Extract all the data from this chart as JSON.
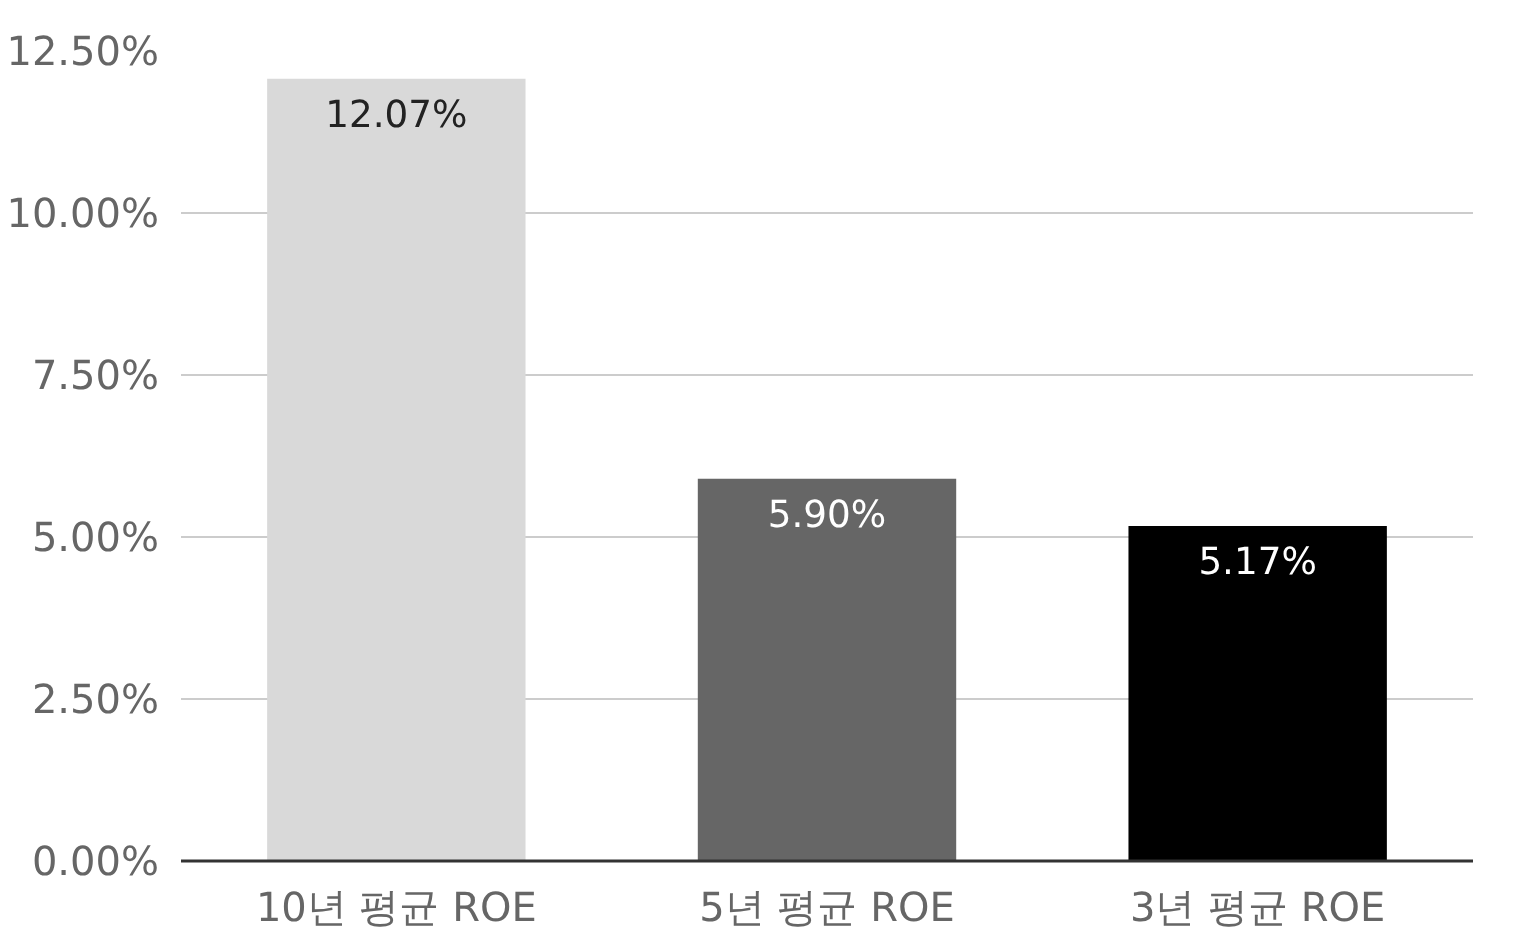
{
  "chart_data": {
    "type": "bar",
    "categories": [
      "10년 평균 ROE",
      "5년 평균 ROE",
      "3년 평균 ROE"
    ],
    "values": [
      12.07,
      5.9,
      5.17
    ],
    "colors": [
      "#d9d9d9",
      "#666666",
      "#000000"
    ],
    "value_labels": [
      "12.07%",
      "5.90%",
      "5.17%"
    ],
    "ylim": [
      0,
      12.5
    ],
    "yticks": [
      {
        "value": 0,
        "label": "0.00%"
      },
      {
        "value": 2.5,
        "label": "2.50%"
      },
      {
        "value": 5,
        "label": "5.00%"
      },
      {
        "value": 7.5,
        "label": "7.50%"
      },
      {
        "value": 10,
        "label": "10.00%"
      },
      {
        "value": 12.5,
        "label": "12.50%"
      }
    ],
    "grid": "y"
  }
}
